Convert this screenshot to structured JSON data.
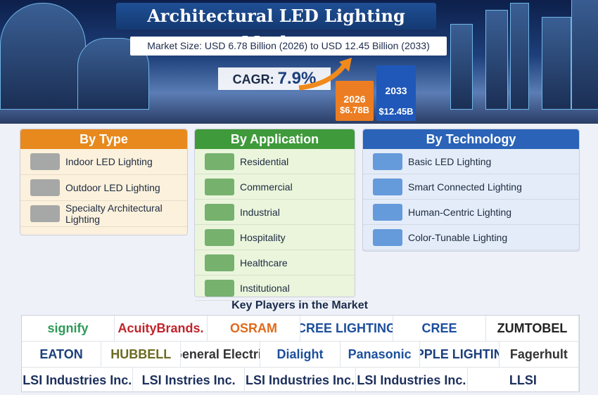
{
  "header": {
    "title": "Architectural LED Lighting Market",
    "subtitle": "Market Size: USD 6.78 Billion (2026) to USD 12.45 Billion (2033)",
    "cagr_label": "CAGR:",
    "cagr_value": "7.9%"
  },
  "bars": [
    {
      "year": "2026",
      "value": "$6.78B"
    },
    {
      "year": "2033",
      "value": "$12.45B"
    }
  ],
  "sections": [
    {
      "title": "By Type",
      "items": [
        "Indoor LED Lighting",
        "Outdoor LED Lighting",
        "Specialty Architectural Lighting"
      ]
    },
    {
      "title": "By Application",
      "items": [
        "Residential",
        "Commercial",
        "Industrial",
        "Hospitality",
        "Healthcare",
        "Institutional"
      ]
    },
    {
      "title": "By Technology",
      "items": [
        "Basic LED Lighting",
        "Smart Connected Lighting",
        "Human-Centric Lighting",
        "Color-Tunable Lighting"
      ]
    }
  ],
  "key_players": {
    "title": "Key Players in the Market",
    "rows": [
      [
        "signify",
        "AcuityBrands.",
        "OSRAM",
        "CREE LIGHTING",
        "CREE",
        "ZUMTOBEL"
      ],
      [
        "EATON",
        "HUBBELL",
        "General Electric",
        "Dialight",
        "Panasonic",
        "OPPLE LIGHTING",
        "Fagerhult"
      ],
      [
        "LSI Industries Inc.",
        "LSI Instries Inc.",
        "LSI Industries Inc.",
        "LSI Industries Inc.",
        "LLSI"
      ]
    ]
  }
}
